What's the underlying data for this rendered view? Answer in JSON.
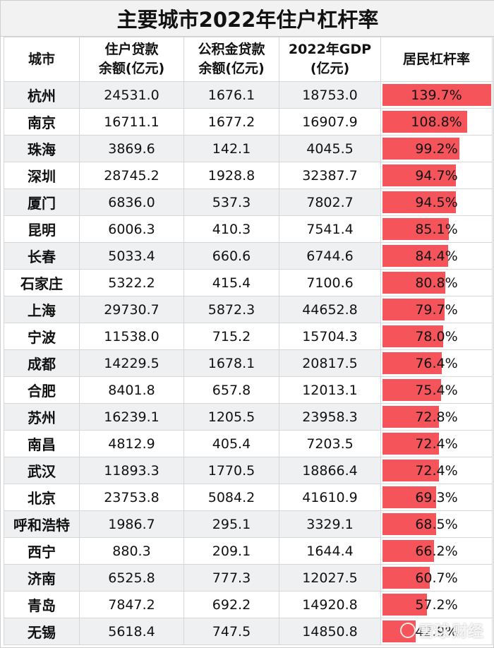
{
  "chart_data": {
    "type": "table",
    "title": "主要城市2022年住户杠杆率",
    "columns": [
      [
        "城市"
      ],
      [
        "住户贷款",
        "余额(亿元)"
      ],
      [
        "公积金贷款",
        "余额(亿元)"
      ],
      [
        "2022年GDP",
        "(亿元)"
      ],
      [
        "居民杠杆率"
      ]
    ],
    "bar_max": 139.7,
    "rows": [
      {
        "city": "杭州",
        "loan": "24531.0",
        "fund": "1676.1",
        "gdp": "18753.0",
        "rate": "139.7%",
        "rate_value": 139.7
      },
      {
        "city": "南京",
        "loan": "16711.1",
        "fund": "1677.2",
        "gdp": "16907.9",
        "rate": "108.8%",
        "rate_value": 108.8
      },
      {
        "city": "珠海",
        "loan": "3869.6",
        "fund": "142.1",
        "gdp": "4045.5",
        "rate": "99.2%",
        "rate_value": 99.2
      },
      {
        "city": "深圳",
        "loan": "28745.2",
        "fund": "1928.8",
        "gdp": "32387.7",
        "rate": "94.7%",
        "rate_value": 94.7
      },
      {
        "city": "厦门",
        "loan": "6836.0",
        "fund": "537.3",
        "gdp": "7802.7",
        "rate": "94.5%",
        "rate_value": 94.5
      },
      {
        "city": "昆明",
        "loan": "6006.3",
        "fund": "410.3",
        "gdp": "7541.4",
        "rate": "85.1%",
        "rate_value": 85.1
      },
      {
        "city": "长春",
        "loan": "5033.4",
        "fund": "660.6",
        "gdp": "6744.6",
        "rate": "84.4%",
        "rate_value": 84.4
      },
      {
        "city": "石家庄",
        "loan": "5322.2",
        "fund": "415.4",
        "gdp": "7100.6",
        "rate": "80.8%",
        "rate_value": 80.8
      },
      {
        "city": "上海",
        "loan": "29730.7",
        "fund": "5872.3",
        "gdp": "44652.8",
        "rate": "79.7%",
        "rate_value": 79.7
      },
      {
        "city": "宁波",
        "loan": "11538.0",
        "fund": "715.2",
        "gdp": "15704.3",
        "rate": "78.0%",
        "rate_value": 78.0
      },
      {
        "city": "成都",
        "loan": "14229.5",
        "fund": "1678.1",
        "gdp": "20817.5",
        "rate": "76.4%",
        "rate_value": 76.4
      },
      {
        "city": "合肥",
        "loan": "8401.8",
        "fund": "657.8",
        "gdp": "12013.1",
        "rate": "75.4%",
        "rate_value": 75.4
      },
      {
        "city": "苏州",
        "loan": "16239.1",
        "fund": "1205.5",
        "gdp": "23958.3",
        "rate": "72.8%",
        "rate_value": 72.8
      },
      {
        "city": "南昌",
        "loan": "4812.9",
        "fund": "405.4",
        "gdp": "7203.5",
        "rate": "72.4%",
        "rate_value": 72.4
      },
      {
        "city": "武汉",
        "loan": "11893.3",
        "fund": "1770.5",
        "gdp": "18866.4",
        "rate": "72.4%",
        "rate_value": 72.4
      },
      {
        "city": "北京",
        "loan": "23753.8",
        "fund": "5084.2",
        "gdp": "41610.9",
        "rate": "69.3%",
        "rate_value": 69.3
      },
      {
        "city": "呼和浩特",
        "loan": "1986.7",
        "fund": "295.1",
        "gdp": "3329.1",
        "rate": "68.5%",
        "rate_value": 68.5
      },
      {
        "city": "西宁",
        "loan": "880.3",
        "fund": "209.1",
        "gdp": "1644.4",
        "rate": "66.2%",
        "rate_value": 66.2
      },
      {
        "city": "济南",
        "loan": "6525.8",
        "fund": "777.3",
        "gdp": "12027.5",
        "rate": "60.7%",
        "rate_value": 60.7
      },
      {
        "city": "青岛",
        "loan": "7847.2",
        "fund": "692.2",
        "gdp": "14920.8",
        "rate": "57.2%",
        "rate_value": 57.2
      },
      {
        "city": "无锡",
        "loan": "5618.4",
        "fund": "747.5",
        "gdp": "14850.8",
        "rate": "42.9%",
        "rate_value": 42.9
      }
    ],
    "bar_color": "#f4545a"
  },
  "watermark": {
    "text": "雪球",
    "subtext": "财经"
  }
}
